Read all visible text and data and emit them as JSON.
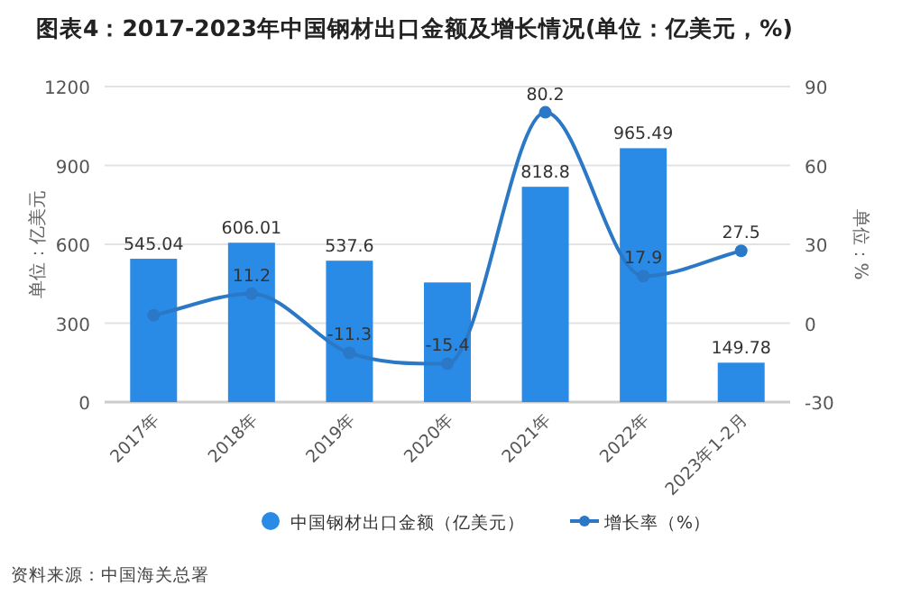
{
  "chart_data": {
    "type": "bar",
    "title": "图表4：2017-2023年中国钢材出口金额及增长情况(单位：亿美元，%)",
    "ylabel": "单位：亿美元",
    "y2label": "单位：%",
    "categories": [
      "2017年",
      "2018年",
      "2019年",
      "2020年",
      "2021年",
      "2022年",
      "2023年1-2月"
    ],
    "series": [
      {
        "name": "中国钢材出口金额（亿美元）",
        "color": "#2a8be6",
        "values": [
          545.04,
          606.01,
          537.6,
          455,
          818.8,
          965.49,
          149.78
        ],
        "value_labels": [
          "545.04",
          "606.01",
          "537.6",
          null,
          "818.8",
          "965.49",
          "149.78"
        ]
      },
      {
        "name": "增长率（%）",
        "type": "line",
        "axis": "y2",
        "color": "#2a78c6",
        "marker": "circle",
        "values": [
          3,
          11.2,
          -11.3,
          -15.4,
          80.2,
          17.9,
          27.5
        ],
        "value_labels": [
          null,
          "11.2",
          "-11.3",
          "-15.4",
          "80.2",
          "17.9",
          "27.5"
        ]
      }
    ],
    "ylim": [
      0,
      1200
    ],
    "yticks": [
      0,
      300,
      600,
      900,
      1200
    ],
    "y2lim": [
      -30,
      90
    ],
    "y2ticks": [
      -30,
      0,
      30,
      60,
      90
    ],
    "grid": "y",
    "legend": "bottom",
    "annotations": [
      "资料来源：中国海关总署"
    ]
  }
}
